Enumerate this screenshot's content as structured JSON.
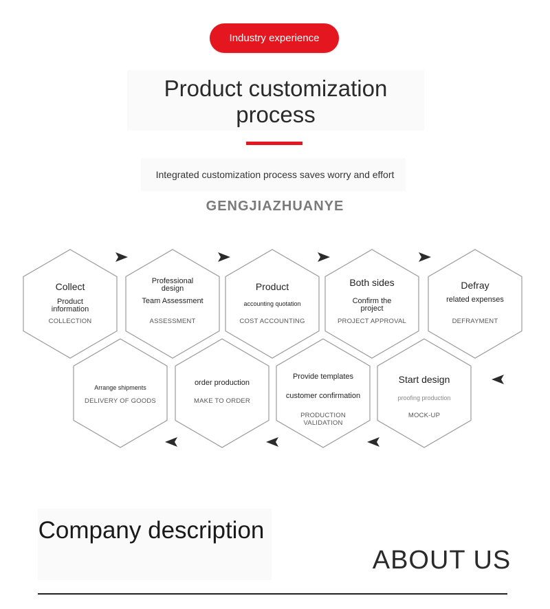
{
  "header": {
    "badge": "Industry experience",
    "title": "Product customization process",
    "subtitle": "Integrated customization process saves worry and effort",
    "brand": "GENGJIAZHUANYE"
  },
  "steps": [
    {
      "title": "Collect",
      "desc": "Product information",
      "tag": "COLLECTION"
    },
    {
      "title": "Professional design",
      "desc": "Team Assessment",
      "tag": "ASSESSMENT"
    },
    {
      "title": "Product",
      "desc": "accounting quotation",
      "tag": "COST ACCOUNTING"
    },
    {
      "title": "Both sides",
      "desc": "Confirm the project",
      "tag": "PROJECT APPROVAL"
    },
    {
      "title": "Defray",
      "desc": "related expenses",
      "tag": "DEFRAYMENT"
    },
    {
      "title": "Start design",
      "desc": "proofing production",
      "tag": "MOCK-UP"
    },
    {
      "title": "Provide templates",
      "desc": "customer confirmation",
      "tag": "PRODUCTION VALIDATION"
    },
    {
      "title": "order production",
      "desc": "",
      "tag": "MAKE TO ORDER"
    },
    {
      "title": "Arrange shipments",
      "desc": "",
      "tag": "DELIVERY OF GOODS"
    }
  ],
  "footer": {
    "company_title": "Company description",
    "about": "ABOUT US"
  },
  "colors": {
    "accent": "#e4161f",
    "hex_stroke": "#9a9a9a",
    "arrow": "#2b2b2b"
  }
}
